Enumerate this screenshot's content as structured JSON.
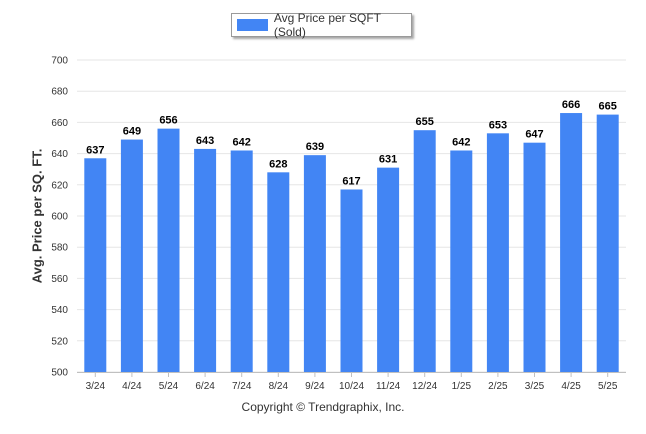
{
  "legend": {
    "label": "Avg Price per SQFT (Sold)"
  },
  "footer": {
    "copyright": "Copyright © Trendgraphix, Inc."
  },
  "colors": {
    "bar": "#4285f4",
    "grid": "#e6e6e6",
    "axis_text": "#333333",
    "label_text": "#000000"
  },
  "chart_data": {
    "type": "bar",
    "categories": [
      "3/24",
      "4/24",
      "5/24",
      "6/24",
      "7/24",
      "8/24",
      "9/24",
      "10/24",
      "11/24",
      "12/24",
      "1/25",
      "2/25",
      "3/25",
      "4/25",
      "5/25"
    ],
    "series": [
      {
        "name": "Avg Price per SQFT (Sold)",
        "values": [
          637,
          649,
          656,
          643,
          642,
          628,
          639,
          617,
          631,
          655,
          642,
          653,
          647,
          666,
          665
        ]
      }
    ],
    "title": "",
    "xlabel": "",
    "ylabel": "Avg. Price per SQ. FT.",
    "ylim": [
      500,
      700
    ],
    "yticks": [
      500,
      520,
      540,
      560,
      580,
      600,
      620,
      640,
      660,
      680,
      700
    ],
    "grid": true,
    "legend_position": "top-center",
    "data_labels": true
  }
}
